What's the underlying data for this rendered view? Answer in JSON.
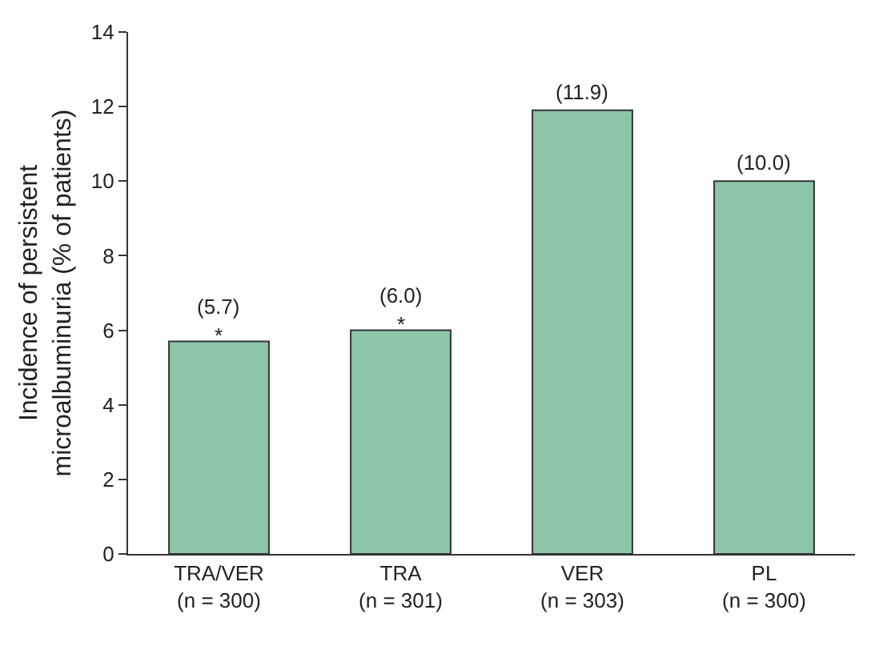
{
  "chart_data": {
    "type": "bar",
    "ylabel": "Incidence of persistent\nmicroalbuminuria (% of patients)",
    "categories": [
      "TRA/VER\n(n = 300)",
      "TRA\n(n = 301)",
      "VER\n(n = 303)",
      "PL\n(n = 300)"
    ],
    "values": [
      5.7,
      6.0,
      11.9,
      10.0
    ],
    "color": "#8cc5a8",
    "value_labels": [
      "(5.7)",
      "(6.0)",
      "(11.9)",
      "(10.0)"
    ],
    "annotations": [
      {
        "text": "*",
        "x": "TRA/VER\n(n = 300)",
        "y": 5.7
      },
      {
        "text": "*",
        "x": "TRA\n(n = 301)",
        "y": 6.0
      }
    ],
    "ylim": [
      0,
      14
    ],
    "yticks": [
      0,
      2,
      4,
      6,
      8,
      10,
      12,
      14
    ],
    "grid": false
  }
}
